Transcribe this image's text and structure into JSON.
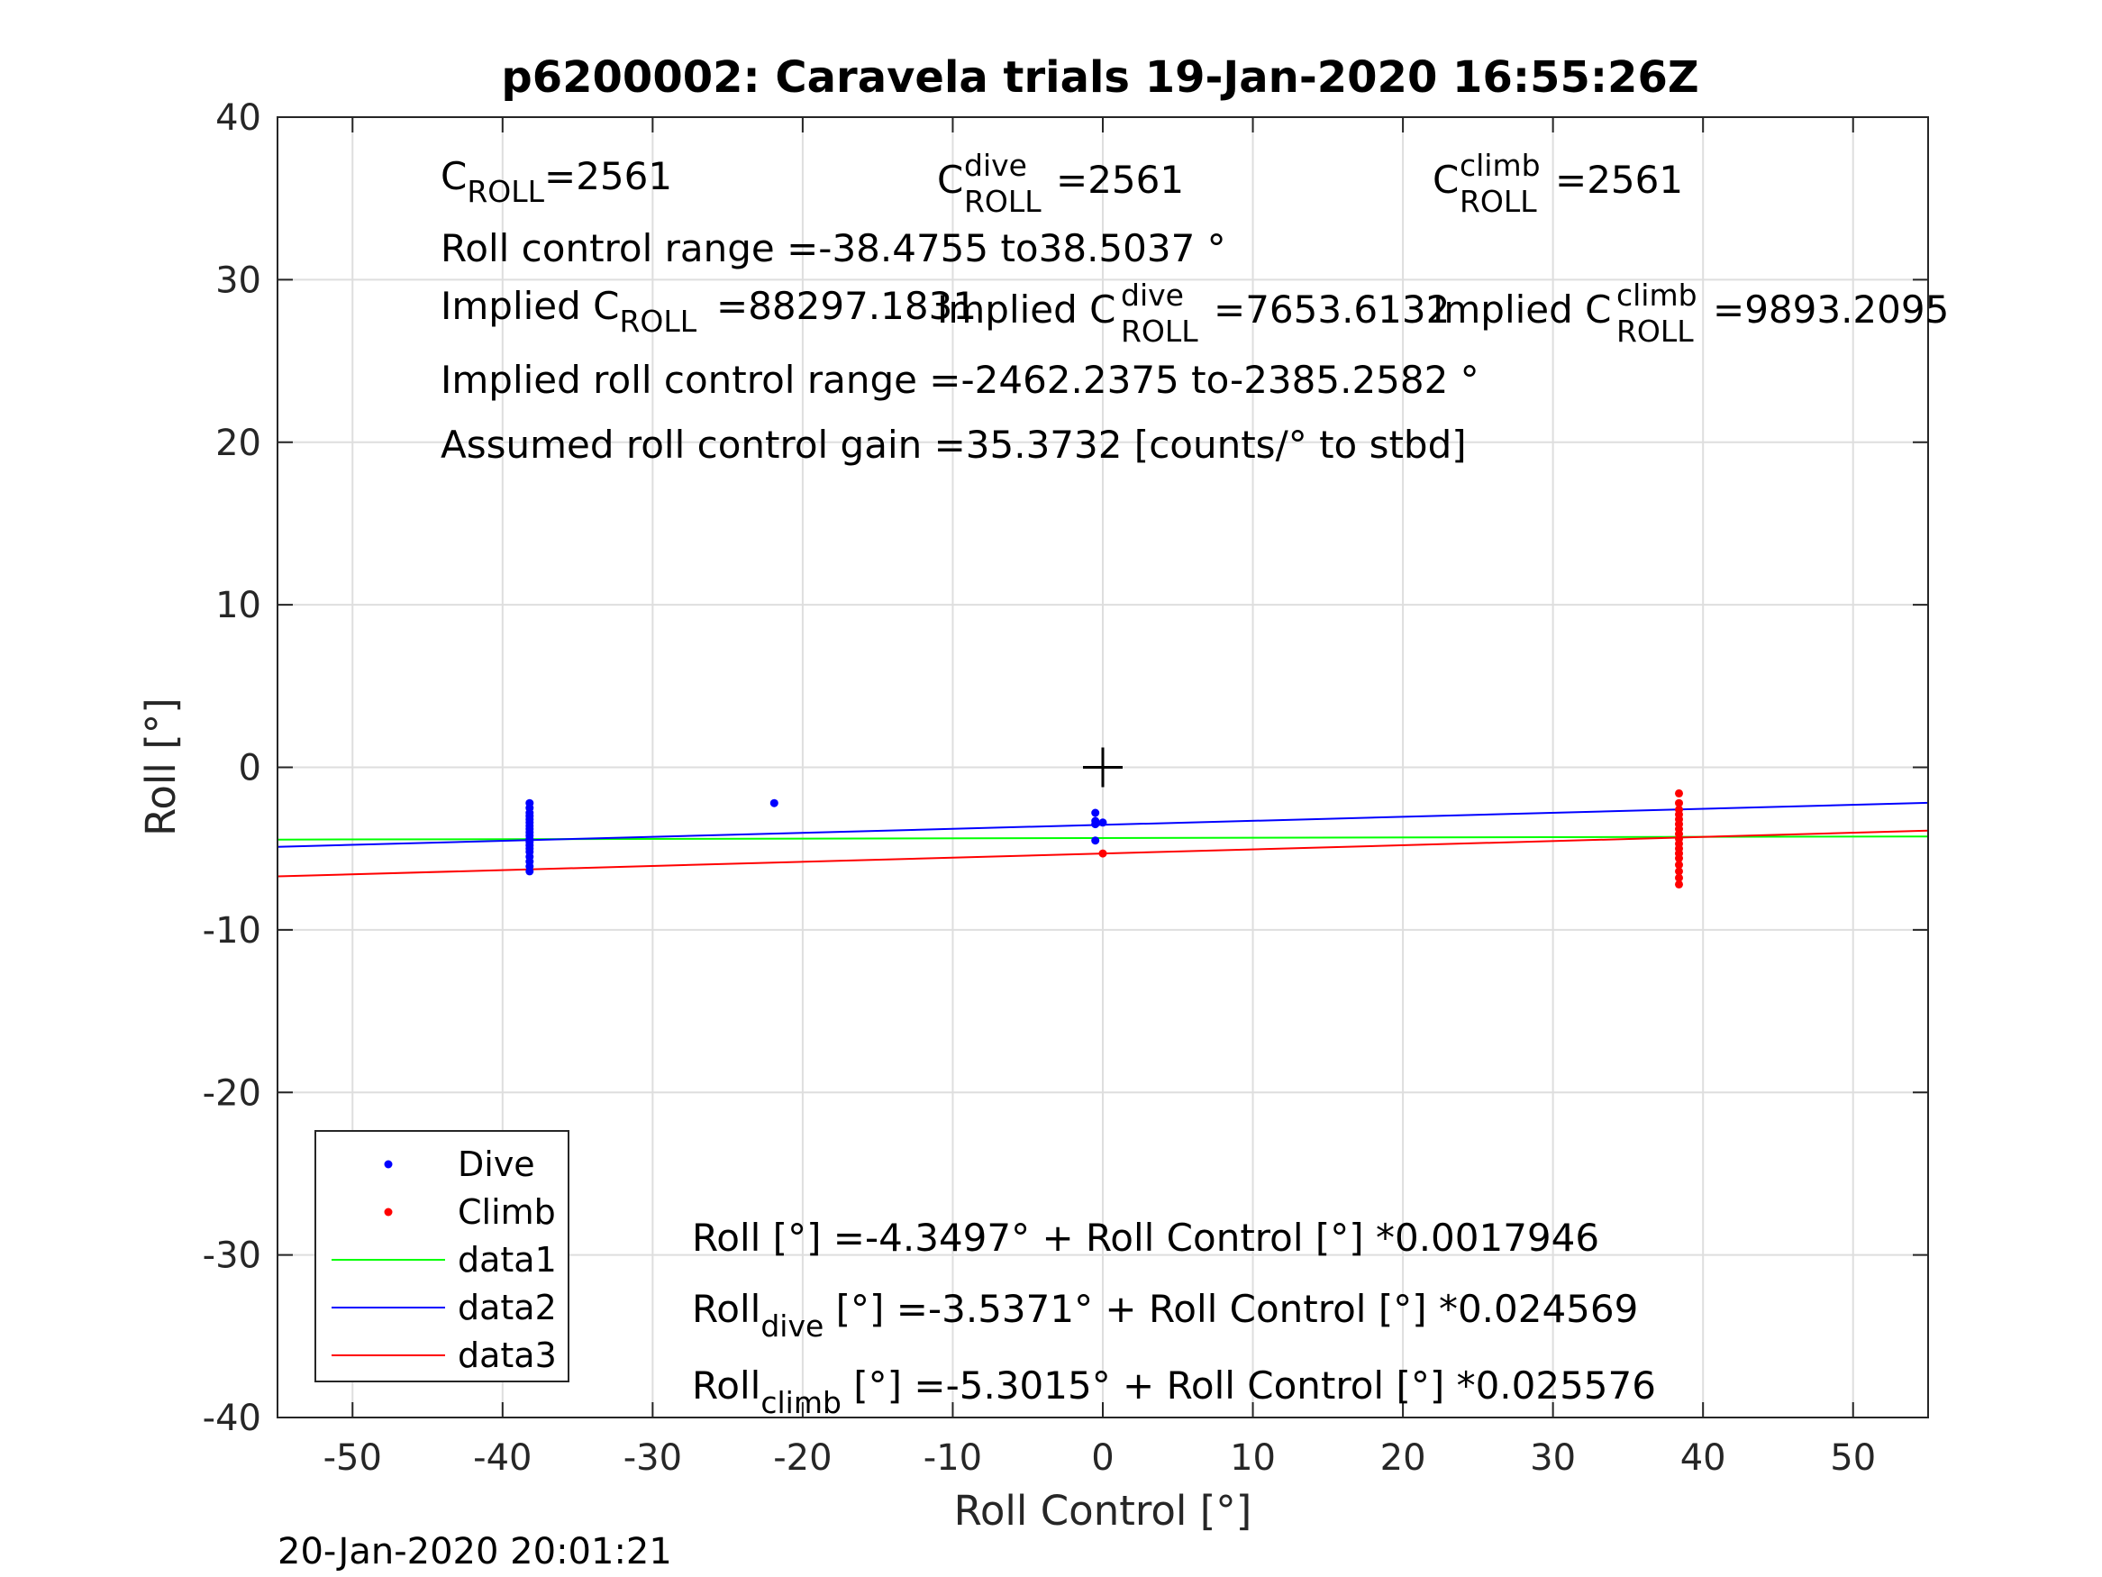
{
  "chart_data": {
    "type": "scatter",
    "title": "p6200002: Caravela trials 19-Jan-2020 16:55:26Z",
    "xlabel": "Roll Control [°]",
    "ylabel": "Roll [°]",
    "xlim": [
      -55,
      55
    ],
    "ylim": [
      -40,
      40
    ],
    "xticks": [
      -50,
      -40,
      -30,
      -20,
      -10,
      0,
      10,
      20,
      30,
      40,
      50
    ],
    "yticks": [
      -40,
      -30,
      -20,
      -10,
      0,
      10,
      20,
      30,
      40
    ],
    "grid": true,
    "legend_position": "bottom-left",
    "series": [
      {
        "name": "Dive",
        "kind": "points",
        "color": "#0000ff",
        "points": [
          [
            -38.2,
            -2.2
          ],
          [
            -38.2,
            -2.5
          ],
          [
            -38.2,
            -2.8
          ],
          [
            -38.2,
            -3.0
          ],
          [
            -38.2,
            -3.2
          ],
          [
            -38.2,
            -3.4
          ],
          [
            -38.2,
            -3.6
          ],
          [
            -38.2,
            -3.8
          ],
          [
            -38.2,
            -4.0
          ],
          [
            -38.2,
            -4.2
          ],
          [
            -38.2,
            -4.4
          ],
          [
            -38.2,
            -4.6
          ],
          [
            -38.2,
            -4.8
          ],
          [
            -38.2,
            -5.0
          ],
          [
            -38.2,
            -5.2
          ],
          [
            -38.2,
            -5.5
          ],
          [
            -38.2,
            -5.8
          ],
          [
            -38.2,
            -6.1
          ],
          [
            -38.2,
            -6.4
          ],
          [
            -21.9,
            -2.2
          ],
          [
            -0.5,
            -2.8
          ],
          [
            -0.5,
            -3.3
          ],
          [
            -0.5,
            -3.5
          ],
          [
            -0.5,
            -4.5
          ],
          [
            0,
            -3.4
          ]
        ]
      },
      {
        "name": "Climb",
        "kind": "points",
        "color": "#ff0000",
        "points": [
          [
            38.4,
            -1.6
          ],
          [
            38.4,
            -2.2
          ],
          [
            38.4,
            -2.6
          ],
          [
            38.4,
            -2.9
          ],
          [
            38.4,
            -3.2
          ],
          [
            38.4,
            -3.5
          ],
          [
            38.4,
            -3.8
          ],
          [
            38.4,
            -4.1
          ],
          [
            38.4,
            -4.4
          ],
          [
            38.4,
            -4.7
          ],
          [
            38.4,
            -5.0
          ],
          [
            38.4,
            -5.3
          ],
          [
            38.4,
            -5.6
          ],
          [
            38.4,
            -6.0
          ],
          [
            38.4,
            -6.4
          ],
          [
            38.4,
            -6.8
          ],
          [
            38.4,
            -7.2
          ],
          [
            0,
            -5.3
          ]
        ]
      },
      {
        "name": "data1",
        "kind": "line",
        "color": "#00ff00",
        "points": [
          [
            -55,
            -4.4484
          ],
          [
            55,
            -4.251
          ]
        ]
      },
      {
        "name": "data2",
        "kind": "line",
        "color": "#0000ff",
        "points": [
          [
            -55,
            -4.8884
          ],
          [
            55,
            -2.1858
          ]
        ]
      },
      {
        "name": "data3",
        "kind": "line",
        "color": "#ff0000",
        "points": [
          [
            -55,
            -6.7082
          ],
          [
            55,
            -3.8948
          ]
        ]
      }
    ],
    "marker": {
      "x": 0,
      "y": 0,
      "symbol": "+"
    },
    "annotations": {
      "c_roll": {
        "base": "C",
        "sub": "ROLL",
        "value": "=2561"
      },
      "c_roll_dive": {
        "base": "C",
        "sup": "dive",
        "sub": "ROLL",
        "value": "=2561"
      },
      "c_roll_climb": {
        "base": "C",
        "sup": "climb",
        "sub": "ROLL",
        "value": "=2561"
      },
      "roll_control_range": "Roll control range =-38.4755 to38.5037 °",
      "implied_c_roll": {
        "prefix": "Implied C",
        "sub": "ROLL",
        "value": "=88297.1831"
      },
      "implied_c_roll_dive": {
        "prefix": "Implied C",
        "sup": "dive",
        "sub": "ROLL",
        "value": "=7653.6132"
      },
      "implied_c_roll_climb": {
        "prefix": "Implied C",
        "sup": "climb",
        "sub": "ROLL",
        "value": "=9893.2095"
      },
      "implied_range": "Implied roll control range =-2462.2375 to-2385.2582 °",
      "gain": "Assumed roll control gain =35.3732 [counts/° to stbd]",
      "fit_all": "Roll [°] =-4.3497° + Roll Control [°] *0.0017946",
      "fit_dive": {
        "base": "Roll",
        "sub": "dive",
        "rest": " [°] =-3.5371° + Roll Control [°] *0.024569"
      },
      "fit_climb": {
        "base": "Roll",
        "sub": "climb",
        "rest": " [°] =-5.3015° + Roll Control [°] *0.025576"
      }
    }
  },
  "timestamp": "20-Jan-2020 20:01:21"
}
